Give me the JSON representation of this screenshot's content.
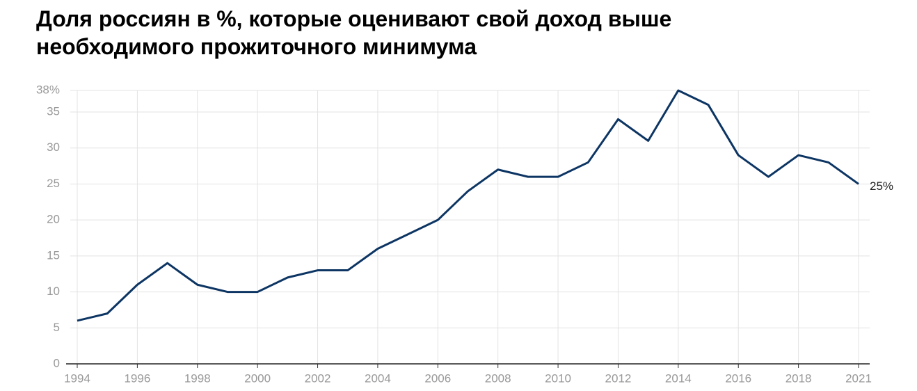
{
  "chart_data": {
    "type": "line",
    "title": "Доля россиян в %, которые оценивают свой доход выше необходимого прожиточного минимума",
    "categories": [
      "1994",
      null,
      "1996",
      null,
      "1998",
      null,
      "2000",
      null,
      "2002",
      null,
      "2004",
      null,
      "2006",
      null,
      "2008",
      null,
      "2010",
      null,
      "2012",
      null,
      "2014",
      null,
      "2016",
      null,
      "2018",
      null,
      "2021"
    ],
    "series": [
      {
        "color": "#0d3563",
        "values": [
          6,
          7,
          11,
          14,
          11,
          10,
          10,
          12,
          13,
          13,
          16,
          18,
          20,
          24,
          27,
          26,
          26,
          28,
          34,
          31,
          38,
          36,
          29,
          26,
          29,
          28,
          25
        ],
        "value_labels": [
          null,
          null,
          null,
          null,
          null,
          null,
          null,
          null,
          null,
          null,
          null,
          null,
          null,
          null,
          null,
          null,
          null,
          null,
          null,
          null,
          null,
          null,
          null,
          null,
          null,
          null,
          "25%"
        ]
      }
    ],
    "ylim": [
      0,
      38
    ],
    "yticks": [
      0,
      5,
      10,
      15,
      20,
      25,
      30,
      35,
      {
        "value": 38,
        "label": "38%"
      }
    ],
    "grid": true
  }
}
